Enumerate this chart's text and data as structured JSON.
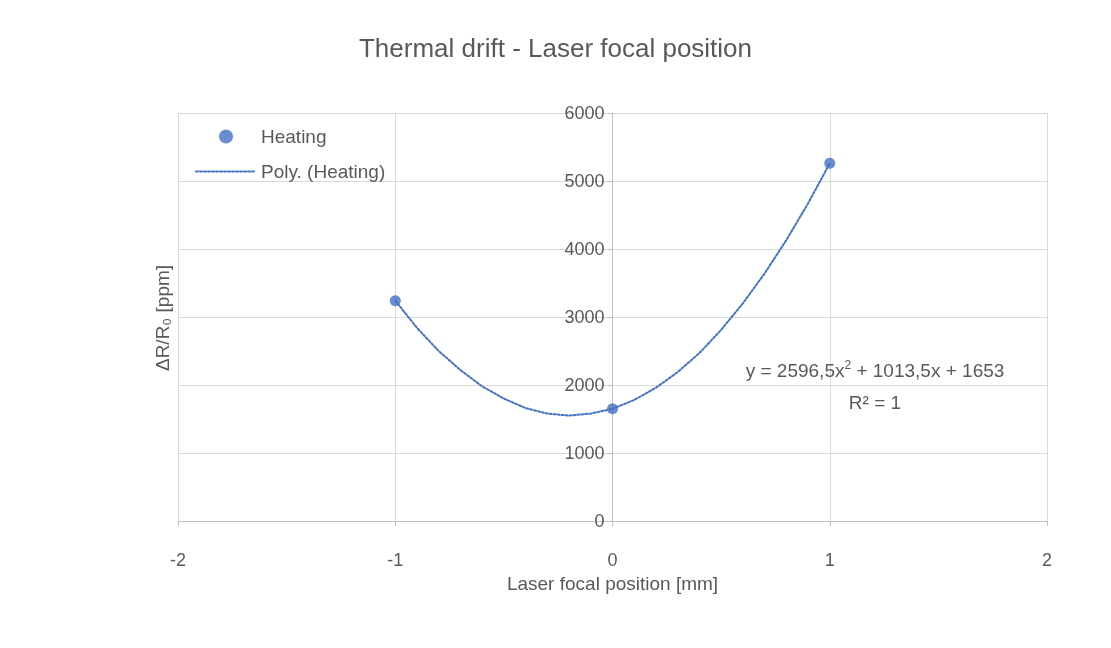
{
  "chart_data": {
    "type": "scatter",
    "title": "Thermal drift - Laser focal position",
    "xlabel": "Laser focal position [mm]",
    "ylabel": "ΔR/R₀ [ppm]",
    "x": [
      -1,
      0,
      1
    ],
    "series": [
      {
        "name": "Heating",
        "color": "#4472c4",
        "marker": "circle",
        "values": [
          3240,
          1650,
          5260
        ]
      },
      {
        "name": "Poly. (Heating)",
        "type": "line",
        "color": "#4472c4",
        "line_style": "dotted",
        "marker": "none",
        "x": [
          -1,
          -0.9,
          -0.8,
          -0.7,
          -0.6,
          -0.5,
          -0.4,
          -0.3,
          -0.2,
          -0.1,
          0,
          0.1,
          0.2,
          0.3,
          0.4,
          0.5,
          0.6,
          0.7,
          0.8,
          0.9,
          1
        ],
        "values": [
          3240,
          2840,
          2500,
          2220,
          1980,
          1800,
          1660,
          1580,
          1550,
          1580,
          1650,
          1780,
          1960,
          2190,
          2470,
          2810,
          3200,
          3640,
          4130,
          4670,
          5260
        ]
      }
    ],
    "annotations": [
      "y = 2596,5x$^{2}$ + 1013,5x + 1653",
      "R² = 1"
    ],
    "xlim": [
      -2,
      2
    ],
    "xticks": [
      -2,
      -1,
      0,
      1,
      2
    ],
    "ylim": [
      0,
      6000
    ],
    "yticks": [
      0,
      1000,
      2000,
      3000,
      4000,
      5000,
      6000
    ],
    "grid": true,
    "legend": "top left"
  }
}
